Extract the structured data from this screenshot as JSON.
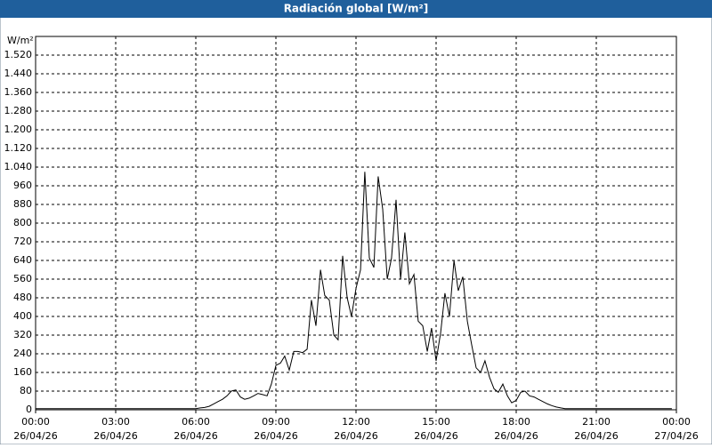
{
  "chart_data": {
    "type": "line",
    "title": "Radiación global [W/m²]",
    "y_label": "W/m²",
    "color": "#000000",
    "grid": true,
    "xlim": [
      0,
      24
    ],
    "ylim": [
      0,
      1600
    ],
    "xticks": [
      {
        "value": 0,
        "label": "00:00",
        "date": "26/04/26"
      },
      {
        "value": 3,
        "label": "03:00",
        "date": "26/04/26"
      },
      {
        "value": 6,
        "label": "06:00",
        "date": "26/04/26"
      },
      {
        "value": 9,
        "label": "09:00",
        "date": "26/04/26"
      },
      {
        "value": 12,
        "label": "12:00",
        "date": "26/04/26"
      },
      {
        "value": 15,
        "label": "15:00",
        "date": "26/04/26"
      },
      {
        "value": 18,
        "label": "18:00",
        "date": "26/04/26"
      },
      {
        "value": 21,
        "label": "21:00",
        "date": "26/04/26"
      },
      {
        "value": 24,
        "label": "00:00",
        "date": "27/04/26"
      }
    ],
    "yticks": [
      0,
      80,
      160,
      240,
      320,
      400,
      480,
      560,
      640,
      720,
      800,
      880,
      960,
      {
        "value": 1040,
        "label": "1.040"
      },
      {
        "value": 1120,
        "label": "1.120"
      },
      {
        "value": 1200,
        "label": "1.200"
      },
      {
        "value": 1280,
        "label": "1.280"
      },
      {
        "value": 1360,
        "label": "1.360"
      },
      {
        "value": 1440,
        "label": "1.440"
      },
      {
        "value": 1520,
        "label": "1.520"
      }
    ],
    "x": [
      0,
      6.0,
      6.17,
      6.33,
      6.5,
      6.67,
      6.83,
      7.0,
      7.17,
      7.33,
      7.5,
      7.67,
      7.83,
      8.0,
      8.17,
      8.33,
      8.5,
      8.67,
      8.83,
      9.0,
      9.17,
      9.33,
      9.5,
      9.67,
      9.83,
      10.0,
      10.17,
      10.33,
      10.5,
      10.67,
      10.83,
      11.0,
      11.17,
      11.33,
      11.5,
      11.67,
      11.83,
      12.0,
      12.17,
      12.33,
      12.5,
      12.67,
      12.83,
      13.0,
      13.17,
      13.33,
      13.5,
      13.67,
      13.83,
      14.0,
      14.17,
      14.33,
      14.5,
      14.67,
      14.83,
      15.0,
      15.17,
      15.33,
      15.5,
      15.67,
      15.83,
      16.0,
      16.17,
      16.33,
      16.5,
      16.67,
      16.83,
      17.0,
      17.17,
      17.33,
      17.5,
      17.67,
      17.83,
      18.0,
      18.17,
      18.33,
      18.5,
      18.67,
      18.83,
      19.0,
      19.17,
      19.33,
      19.5,
      19.67,
      19.83,
      20.0,
      23.83
    ],
    "values": [
      5,
      5,
      8,
      10,
      15,
      25,
      35,
      45,
      60,
      80,
      85,
      55,
      45,
      50,
      60,
      70,
      65,
      60,
      110,
      190,
      200,
      230,
      170,
      250,
      250,
      245,
      260,
      470,
      360,
      600,
      490,
      470,
      320,
      300,
      660,
      480,
      400,
      520,
      600,
      1020,
      650,
      610,
      1000,
      860,
      560,
      650,
      900,
      560,
      760,
      540,
      580,
      380,
      360,
      250,
      350,
      210,
      330,
      500,
      400,
      640,
      510,
      570,
      380,
      280,
      180,
      160,
      210,
      140,
      90,
      75,
      110,
      60,
      30,
      40,
      75,
      80,
      60,
      55,
      45,
      35,
      25,
      18,
      12,
      8,
      5,
      5,
      5
    ]
  }
}
